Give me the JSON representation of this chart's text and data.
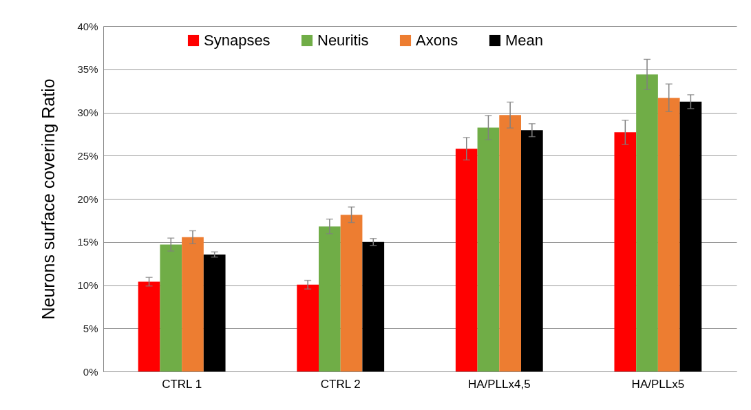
{
  "chart_data": {
    "type": "bar",
    "ylabel": "Neurons surface covering Ratio",
    "categories": [
      "CTRL 1",
      "CTRL 2",
      "HA/PLLx4,5",
      "HA/PLLx5"
    ],
    "series": [
      {
        "name": "Synapses",
        "color": "#ff0000",
        "values": [
          10.4,
          10.05,
          25.8,
          27.7
        ],
        "errors": [
          0.5,
          0.5,
          1.3,
          1.4
        ]
      },
      {
        "name": "Neuritis",
        "color": "#70ad47",
        "values": [
          14.7,
          16.8,
          28.25,
          34.4
        ],
        "errors": [
          0.75,
          0.85,
          1.4,
          1.75
        ]
      },
      {
        "name": "Axons",
        "color": "#ed7d31",
        "values": [
          15.55,
          18.15,
          29.7,
          31.7
        ],
        "errors": [
          0.75,
          0.9,
          1.5,
          1.6
        ]
      },
      {
        "name": "Mean",
        "color": "#000000",
        "values": [
          13.55,
          15.0,
          27.95,
          31.25
        ],
        "errors": [
          0.3,
          0.4,
          0.75,
          0.8
        ]
      }
    ],
    "ylim": [
      0,
      40
    ],
    "yticks": [
      {
        "value": 0,
        "label": "0%"
      },
      {
        "value": 5,
        "label": "5%"
      },
      {
        "value": 10,
        "label": "10%"
      },
      {
        "value": 15,
        "label": "15%"
      },
      {
        "value": 20,
        "label": "20%"
      },
      {
        "value": 25,
        "label": "25%"
      },
      {
        "value": 30,
        "label": "30%"
      },
      {
        "value": 35,
        "label": "35%"
      },
      {
        "value": 40,
        "label": "40%"
      }
    ],
    "grid": "y",
    "legend": "top"
  }
}
